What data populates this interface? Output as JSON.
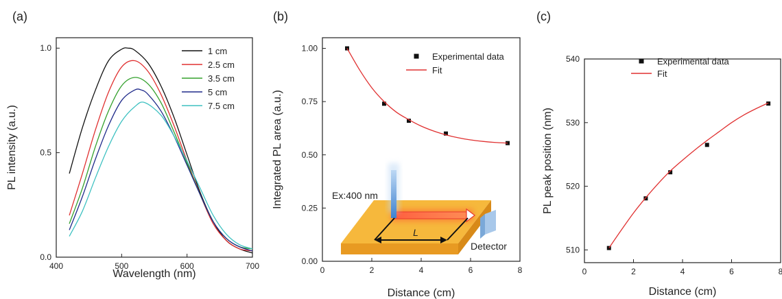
{
  "chart_data": [
    {
      "panel": "(a)",
      "type": "line",
      "xlabel": "Wavelength (nm)",
      "ylabel": "PL intensity (a.u.)",
      "xlim": [
        400,
        700
      ],
      "ylim": [
        0,
        1.05
      ],
      "xticks": [
        400,
        500,
        600,
        700
      ],
      "yticks": [
        0.0,
        0.5,
        1.0
      ],
      "ytick_labels": [
        "0.0",
        "0.5",
        "1.0"
      ],
      "legend_position": "top-right",
      "series": [
        {
          "name": "1 cm",
          "color": "#111111",
          "x": [
            420,
            440,
            460,
            480,
            500,
            510,
            520,
            540,
            560,
            580,
            600,
            620,
            640,
            660,
            680,
            700
          ],
          "y": [
            0.4,
            0.62,
            0.8,
            0.94,
            0.995,
            1.0,
            0.99,
            0.93,
            0.82,
            0.67,
            0.49,
            0.31,
            0.17,
            0.08,
            0.04,
            0.02
          ]
        },
        {
          "name": "2.5 cm",
          "color": "#e03030",
          "x": [
            420,
            440,
            460,
            480,
            500,
            520,
            540,
            560,
            580,
            600,
            620,
            640,
            660,
            680,
            700
          ],
          "y": [
            0.2,
            0.4,
            0.61,
            0.79,
            0.91,
            0.94,
            0.89,
            0.78,
            0.63,
            0.46,
            0.3,
            0.16,
            0.08,
            0.04,
            0.03
          ]
        },
        {
          "name": "3.5 cm",
          "color": "#33a02c",
          "x": [
            420,
            440,
            460,
            480,
            500,
            520,
            540,
            560,
            580,
            600,
            620,
            640,
            660,
            680,
            700
          ],
          "y": [
            0.16,
            0.33,
            0.53,
            0.7,
            0.82,
            0.86,
            0.83,
            0.74,
            0.6,
            0.45,
            0.3,
            0.17,
            0.09,
            0.05,
            0.04
          ]
        },
        {
          "name": "5 cm",
          "color": "#1f2a8a",
          "x": [
            420,
            440,
            460,
            480,
            500,
            520,
            530,
            540,
            560,
            580,
            600,
            620,
            640,
            660,
            680,
            700
          ],
          "y": [
            0.13,
            0.29,
            0.47,
            0.63,
            0.75,
            0.8,
            0.8,
            0.78,
            0.7,
            0.58,
            0.44,
            0.3,
            0.17,
            0.09,
            0.05,
            0.03
          ]
        },
        {
          "name": "7.5 cm",
          "color": "#3ec1c1",
          "x": [
            420,
            440,
            460,
            480,
            500,
            520,
            535,
            560,
            580,
            600,
            620,
            640,
            660,
            680,
            700
          ],
          "y": [
            0.1,
            0.22,
            0.38,
            0.53,
            0.65,
            0.72,
            0.74,
            0.68,
            0.58,
            0.46,
            0.33,
            0.2,
            0.11,
            0.06,
            0.04
          ]
        }
      ]
    },
    {
      "panel": "(b)",
      "type": "scatter",
      "xlabel": "Distance (cm)",
      "ylabel": "Integrated PL area (a.u.)",
      "xlim": [
        0,
        8
      ],
      "ylim": [
        0,
        1.05
      ],
      "xticks": [
        0,
        2,
        4,
        6,
        8
      ],
      "yticks": [
        0.0,
        0.25,
        0.5,
        0.75,
        1.0
      ],
      "ytick_labels": [
        "0.00",
        "0.25",
        "0.50",
        "0.75",
        "1.00"
      ],
      "legend_position": "top-right",
      "series": [
        {
          "name": "Experimental data",
          "kind": "points",
          "color": "#111111",
          "x": [
            1,
            2.5,
            3.5,
            5,
            7.5
          ],
          "y": [
            1.0,
            0.74,
            0.66,
            0.6,
            0.555
          ]
        },
        {
          "name": "Fit",
          "kind": "line",
          "color": "#e03030",
          "x": [
            1,
            1.5,
            2,
            2.5,
            3,
            3.5,
            4,
            4.5,
            5,
            5.5,
            6,
            6.5,
            7,
            7.5
          ],
          "y": [
            1.0,
            0.9,
            0.815,
            0.75,
            0.7,
            0.665,
            0.635,
            0.612,
            0.594,
            0.58,
            0.57,
            0.563,
            0.558,
            0.555
          ]
        }
      ],
      "inset": {
        "excitation_label": "Ex:400 nm",
        "length_label": "L",
        "detector_label": "Detector",
        "slab_color": "#f6b83c",
        "beam_color": "#e83a2e",
        "excitation_color": "#4a8fd8",
        "detector_color": "#7aa8d8"
      }
    },
    {
      "panel": "(c)",
      "type": "scatter",
      "xlabel": "Distance (cm)",
      "ylabel": "PL peak position (nm)",
      "xlim": [
        0,
        8
      ],
      "ylim": [
        508,
        540
      ],
      "xticks": [
        0,
        2,
        4,
        6,
        8
      ],
      "yticks": [
        510,
        520,
        530,
        540
      ],
      "ytick_labels": [
        "510",
        "520",
        "530",
        "540"
      ],
      "legend_position": "top-left",
      "series": [
        {
          "name": "Experimental data",
          "kind": "points",
          "color": "#111111",
          "x": [
            1,
            2.5,
            3.5,
            5,
            7.5
          ],
          "y": [
            510.3,
            518.1,
            522.2,
            526.5,
            533.0
          ]
        },
        {
          "name": "Fit",
          "kind": "line",
          "color": "#e03030",
          "x": [
            1,
            1.5,
            2,
            2.5,
            3,
            3.5,
            4,
            4.5,
            5,
            5.5,
            6,
            6.5,
            7,
            7.5
          ],
          "y": [
            510.3,
            513.1,
            515.8,
            518.2,
            520.4,
            522.4,
            524.1,
            525.7,
            527.2,
            528.6,
            530.0,
            531.2,
            532.2,
            533.1
          ]
        }
      ]
    }
  ]
}
